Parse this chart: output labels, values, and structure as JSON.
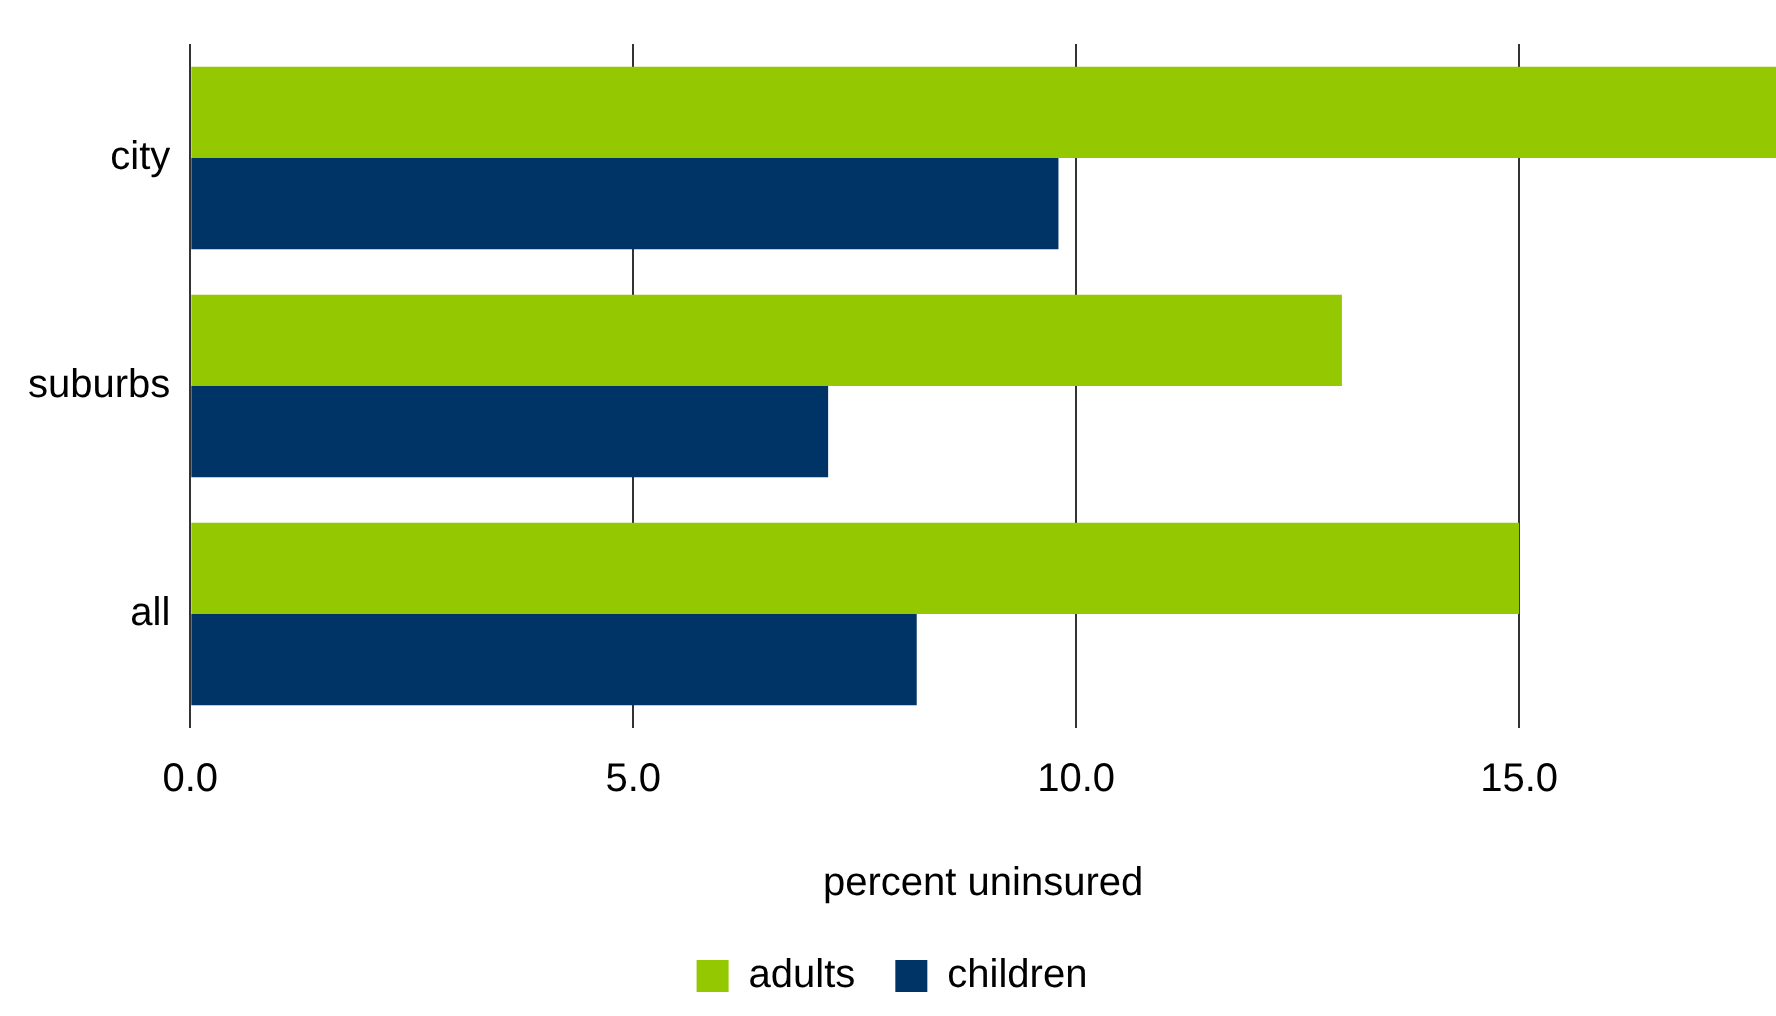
{
  "chart_data": {
    "type": "bar",
    "orientation": "horizontal",
    "xlabel": "percent uninsured",
    "categories": [
      "city",
      "suburbs",
      "all"
    ],
    "series": [
      {
        "name": "adults",
        "color": "#94c800",
        "values": [
          17.9,
          13.0,
          15.0
        ]
      },
      {
        "name": "children",
        "color": "#003366",
        "values": [
          9.8,
          7.2,
          8.2
        ]
      }
    ],
    "xlim": [
      0,
      17.9
    ],
    "xticks": [
      {
        "value": 0,
        "label": "0.0"
      },
      {
        "value": 5,
        "label": "5.0"
      },
      {
        "value": 10,
        "label": "10.0"
      },
      {
        "value": 15,
        "label": "15.0"
      }
    ],
    "grid": "x",
    "legend": "bottom"
  }
}
